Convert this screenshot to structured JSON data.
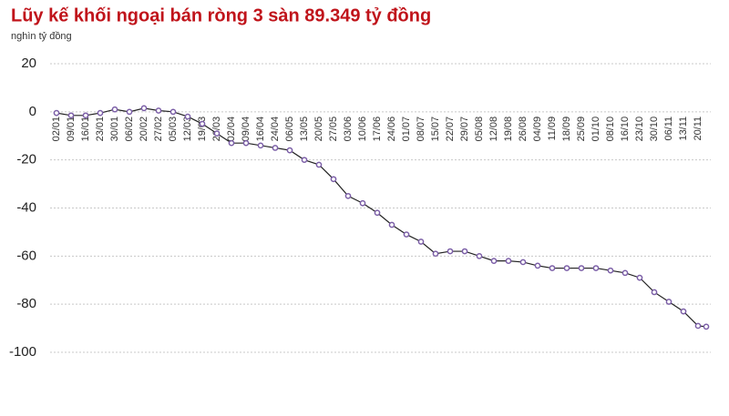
{
  "chart_data": {
    "type": "line",
    "title": "Lũy kế khối ngoại bán ròng 3 sàn 89.349 tỷ đồng",
    "subtitle": "nghìn tỷ đồng",
    "categories": [
      "02/01",
      "09/01",
      "16/01",
      "23/01",
      "30/01",
      "06/02",
      "20/02",
      "27/02",
      "05/03",
      "12/03",
      "19/03",
      "26/03",
      "02/04",
      "09/04",
      "16/04",
      "24/04",
      "06/05",
      "13/05",
      "20/05",
      "27/05",
      "03/06",
      "10/06",
      "17/06",
      "24/06",
      "01/07",
      "08/07",
      "15/07",
      "22/07",
      "29/07",
      "05/08",
      "12/08",
      "19/08",
      "26/08",
      "04/09",
      "11/09",
      "18/09",
      "25/09",
      "01/10",
      "08/10",
      "16/10",
      "23/10",
      "30/10",
      "06/11",
      "13/11",
      "20/11",
      null
    ],
    "series": [
      {
        "color": "#7b5ea7",
        "values": [
          -0.5,
          -1.5,
          -1.5,
          -0.5,
          1,
          0,
          1.5,
          0.5,
          0,
          -2,
          -5,
          -9,
          -13,
          -13,
          -14,
          -15,
          -16,
          -20,
          -22,
          -28,
          -35,
          -38,
          -42,
          -47,
          -51,
          -54,
          -59,
          -58,
          -58,
          -60,
          -62,
          -62,
          -62.5,
          -64,
          -65,
          -65,
          -65,
          -65,
          -66,
          -67,
          -69,
          -75,
          -79,
          -83,
          -89,
          -89.349
        ]
      }
    ],
    "ylim": [
      -100,
      20
    ],
    "yticks": [
      20,
      0,
      -20,
      -40,
      -60,
      -80,
      -100
    ],
    "grid": true
  }
}
